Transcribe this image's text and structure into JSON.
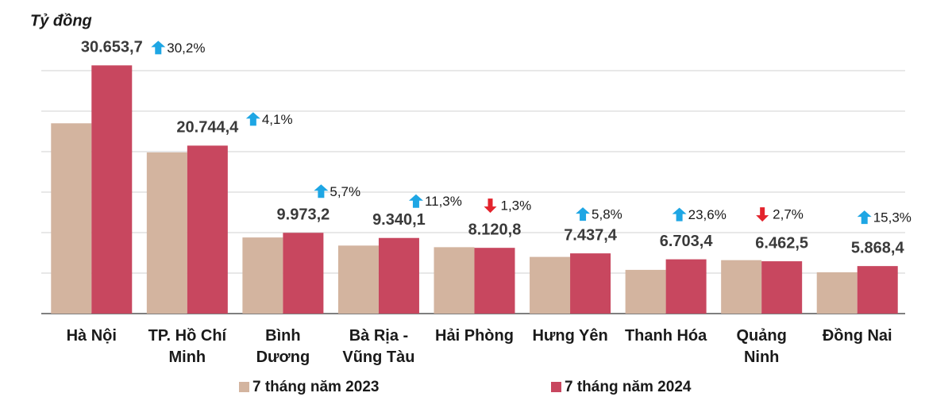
{
  "chart_data": {
    "type": "bar",
    "y_label": "Tỷ đồng",
    "categories": [
      [
        "Hà Nội"
      ],
      [
        "TP. Hồ Chí",
        "Minh"
      ],
      [
        "Bình",
        "Dương"
      ],
      [
        "Bà Rịa -",
        "Vũng Tàu"
      ],
      [
        "Hải Phòng"
      ],
      [
        "Hưng Yên"
      ],
      [
        "Thanh Hóa"
      ],
      [
        "Quảng",
        "Ninh"
      ],
      [
        "Đồng Nai"
      ]
    ],
    "series": [
      {
        "name": "7 tháng năm 2023",
        "color": "#d3b49f",
        "values": [
          23500,
          19900,
          9400,
          8400,
          8200,
          7000,
          5400,
          6600,
          5100
        ]
      },
      {
        "name": "7 tháng năm 2024",
        "color": "#c8475f",
        "values": [
          30653.7,
          20744.4,
          9973.2,
          9340.1,
          8120.8,
          7437.4,
          6703.4,
          6462.5,
          5868.4
        ],
        "value_labels": [
          "30.653,7",
          "20.744,4",
          "9.973,2",
          "9.340,1",
          "8.120,8",
          "7.437,4",
          "6.703,4",
          "6.462,5",
          "5.868,4"
        ]
      }
    ],
    "changes": {
      "values": [
        30.2,
        4.1,
        5.7,
        11.3,
        -1.3,
        5.8,
        23.6,
        -2.7,
        15.3
      ],
      "labels": [
        "30,2%",
        "4,1%",
        "5,7%",
        "11,3%",
        "1,3%",
        "5,8%",
        "23,6%",
        "2,7%",
        "15,3%"
      ],
      "up_color": "#1ea6e4",
      "down_color": "#e3232c"
    },
    "ylim": [
      0,
      35000
    ],
    "yticks": [
      0,
      5000,
      10000,
      15000,
      20000,
      25000,
      30000
    ],
    "grid": true,
    "ytick_labels": false,
    "legend": "bottom"
  }
}
